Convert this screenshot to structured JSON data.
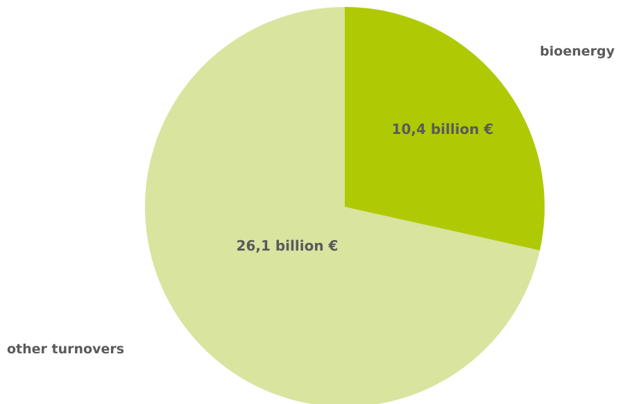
{
  "chart_data": {
    "type": "pie",
    "categories": [
      "bioenergy",
      "other turnovers"
    ],
    "values": [
      10.4,
      26.1
    ],
    "value_labels": [
      "10,4 billion €",
      "26,1 billion €"
    ],
    "colors": [
      "#b0c905",
      "#d9e49f"
    ],
    "title": "",
    "legend": "none"
  }
}
